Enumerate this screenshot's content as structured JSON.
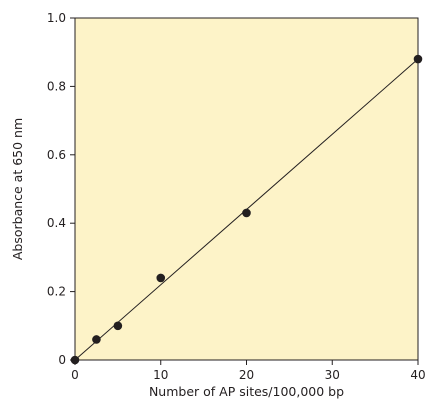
{
  "chart_data": {
    "type": "scatter",
    "title": "",
    "xlabel": "Number of AP sites/100,000 bp",
    "ylabel": "Absorbance at 650 nm",
    "xlim": [
      0,
      40
    ],
    "ylim": [
      0,
      1.0
    ],
    "x_ticks": [
      0,
      10,
      20,
      30,
      40
    ],
    "x_tick_labels": [
      "0",
      "10",
      "20",
      "30",
      "40"
    ],
    "y_ticks": [
      0,
      0.2,
      0.4,
      0.6,
      0.8,
      1.0
    ],
    "y_tick_labels": [
      "0",
      "0.2",
      "0.4",
      "0.6",
      "0.8",
      "1.0"
    ],
    "grid": false,
    "series": [
      {
        "x": [
          0,
          2.5,
          5,
          10,
          20,
          40
        ],
        "y": [
          0,
          0.06,
          0.1,
          0.24,
          0.43,
          0.88
        ]
      }
    ],
    "fit_line": {
      "x": [
        0,
        40
      ],
      "y": [
        0,
        0.88
      ]
    },
    "colors": {
      "plot_background": "#fdf3c8",
      "marker": "#231f20",
      "line": "#231f20",
      "frame": "#231f20"
    }
  }
}
